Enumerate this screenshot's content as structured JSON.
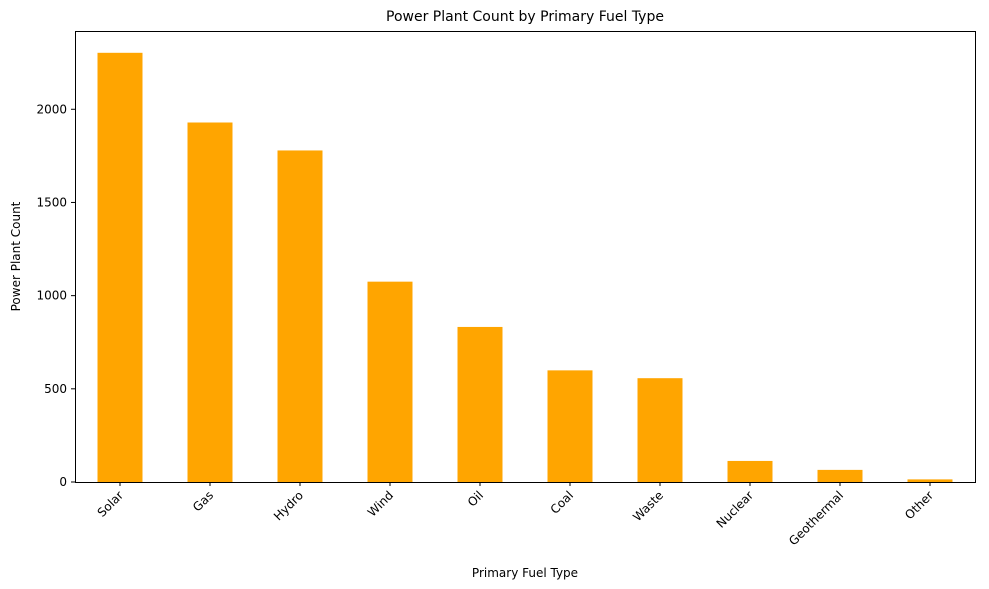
{
  "chart_data": {
    "type": "bar",
    "title": "Power Plant Count by Primary Fuel Type",
    "xlabel": "Primary Fuel Type",
    "ylabel": "Power Plant Count",
    "categories": [
      "Solar",
      "Gas",
      "Hydro",
      "Wind",
      "Oil",
      "Coal",
      "Waste",
      "Nuclear",
      "Geothermal",
      "Other"
    ],
    "values": [
      2303,
      1929,
      1779,
      1075,
      832,
      599,
      557,
      113,
      65,
      14
    ],
    "ylim": [
      0,
      2420
    ],
    "yticks": [
      0,
      500,
      1000,
      1500,
      2000
    ],
    "ytick_labels": [
      "0",
      "500",
      "1000",
      "1500",
      "2000"
    ],
    "bar_color": "#FFA500",
    "grid": false,
    "legend": "none"
  }
}
